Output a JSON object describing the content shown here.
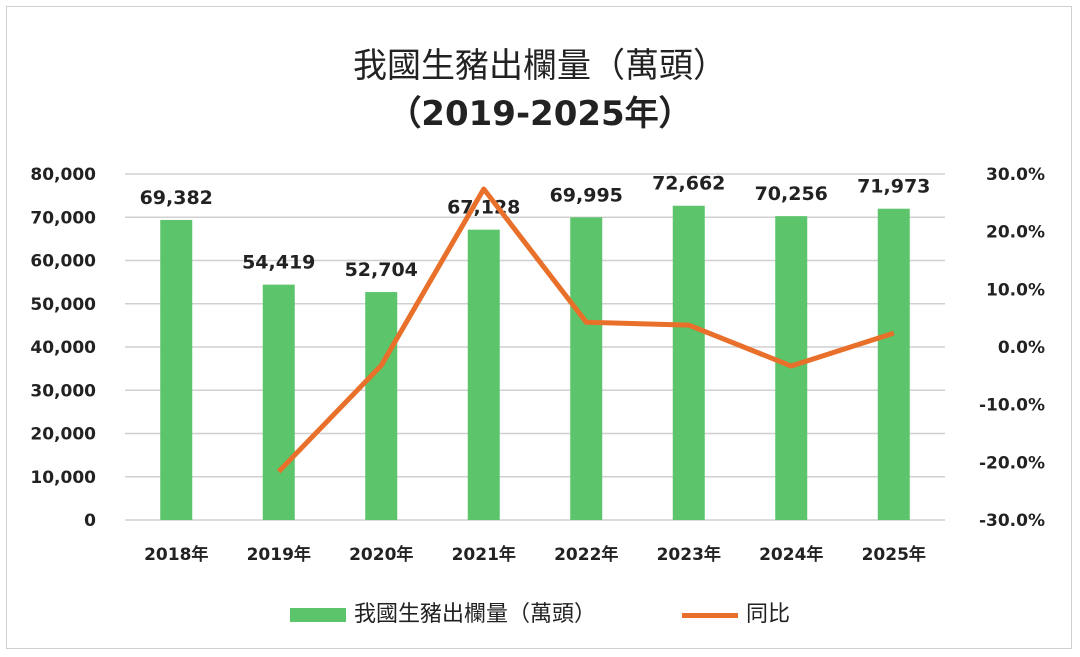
{
  "chart_data": {
    "type": "bar+line",
    "title": "我國生豬出欄量（萬頭）",
    "subtitle": "（2019-2025年）",
    "categories": [
      "2018年",
      "2019年",
      "2020年",
      "2021年",
      "2022年",
      "2023年",
      "2024年",
      "2025年"
    ],
    "series": [
      {
        "name": "我國生豬出欄量（萬頭）",
        "type": "bar",
        "axis": "left",
        "color": "#5cc46a",
        "values": [
          69382,
          54419,
          52704,
          67128,
          69995,
          72662,
          70256,
          71973
        ],
        "labels": [
          "69,382",
          "54,419",
          "52,704",
          "67,128",
          "69,995",
          "72,662",
          "70,256",
          "71,973"
        ]
      },
      {
        "name": "同比",
        "type": "line",
        "axis": "right",
        "color": "#e8702a",
        "values": [
          null,
          -21.6,
          -3.2,
          27.4,
          4.3,
          3.8,
          -3.3,
          2.4
        ]
      }
    ],
    "left_axis": {
      "ylim": [
        0,
        80000
      ],
      "ticks": [
        "0",
        "10,000",
        "20,000",
        "30,000",
        "40,000",
        "50,000",
        "60,000",
        "70,000",
        "80,000"
      ]
    },
    "right_axis": {
      "ylim": [
        -30,
        30
      ],
      "ticks": [
        "-30.0%",
        "-20.0%",
        "-10.0%",
        "0.0%",
        "10.0%",
        "20.0%",
        "30.0%"
      ]
    },
    "grid": true,
    "legend": "bottom"
  }
}
